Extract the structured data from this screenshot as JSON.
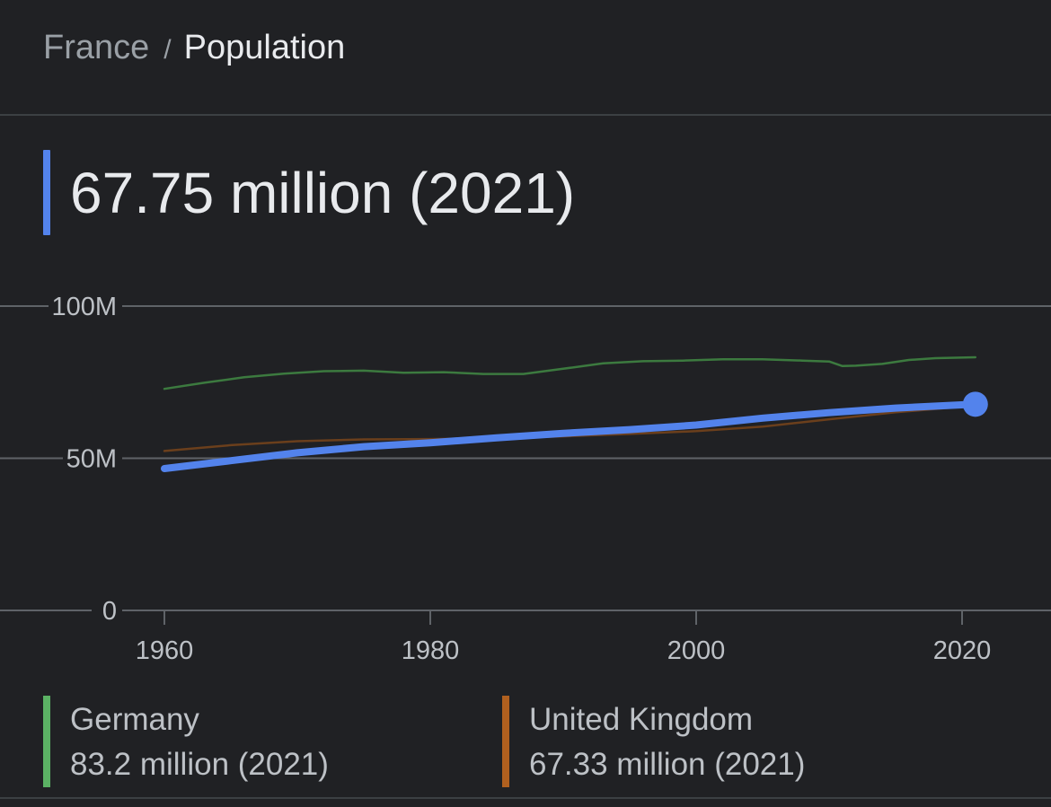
{
  "breadcrumb": {
    "parent": "France",
    "separator": "/",
    "current": "Population"
  },
  "headline": {
    "value": "67.75 million (2021)",
    "accent_color": "#5383ec"
  },
  "legend": [
    {
      "name": "Germany",
      "value": "83.2 million (2021)",
      "color": "#5bb264"
    },
    {
      "name": "United Kingdom",
      "value": "67.33 million (2021)",
      "color": "#b0601f"
    }
  ],
  "chart_data": {
    "type": "line",
    "title": "France / Population",
    "xlabel": "",
    "ylabel": "",
    "xlim": [
      1950,
      2027
    ],
    "ylim": [
      0,
      100
    ],
    "y_ticks": [
      {
        "value": 0,
        "label": "0"
      },
      {
        "value": 50,
        "label": "50M"
      },
      {
        "value": 100,
        "label": "100M"
      }
    ],
    "x_ticks": [
      {
        "value": 1960,
        "label": "1960"
      },
      {
        "value": 1980,
        "label": "1980"
      },
      {
        "value": 2000,
        "label": "2000"
      },
      {
        "value": 2020,
        "label": "2020"
      }
    ],
    "grid": true,
    "series": [
      {
        "name": "Germany",
        "color": "#3c7a3f",
        "x": [
          1960,
          1963,
          1966,
          1969,
          1972,
          1975,
          1978,
          1981,
          1984,
          1987,
          1990,
          1993,
          1996,
          1999,
          2002,
          2005,
          2008,
          2010,
          2011,
          2012,
          2014,
          2016,
          2018,
          2021
        ],
        "values": [
          72.8,
          74.8,
          76.6,
          77.8,
          78.6,
          78.8,
          78.1,
          78.3,
          77.7,
          77.7,
          79.4,
          81.2,
          81.9,
          82.1,
          82.5,
          82.5,
          82.1,
          81.8,
          80.3,
          80.4,
          81.0,
          82.3,
          82.9,
          83.2
        ]
      },
      {
        "name": "United Kingdom",
        "color": "#6b3f1c",
        "x": [
          1960,
          1965,
          1970,
          1975,
          1980,
          1985,
          1990,
          1995,
          2000,
          2005,
          2010,
          2015,
          2021
        ],
        "values": [
          52.4,
          54.3,
          55.6,
          56.2,
          56.3,
          56.6,
          57.2,
          58.0,
          58.9,
          60.4,
          62.8,
          65.1,
          67.33
        ]
      },
      {
        "name": "France",
        "color": "#5383ec",
        "x": [
          1960,
          1965,
          1970,
          1975,
          1980,
          1985,
          1990,
          1995,
          2000,
          2005,
          2010,
          2015,
          2021
        ],
        "values": [
          46.6,
          49.2,
          51.8,
          53.8,
          55.1,
          56.7,
          58.2,
          59.4,
          60.9,
          63.2,
          65.0,
          66.5,
          67.75
        ]
      }
    ]
  }
}
